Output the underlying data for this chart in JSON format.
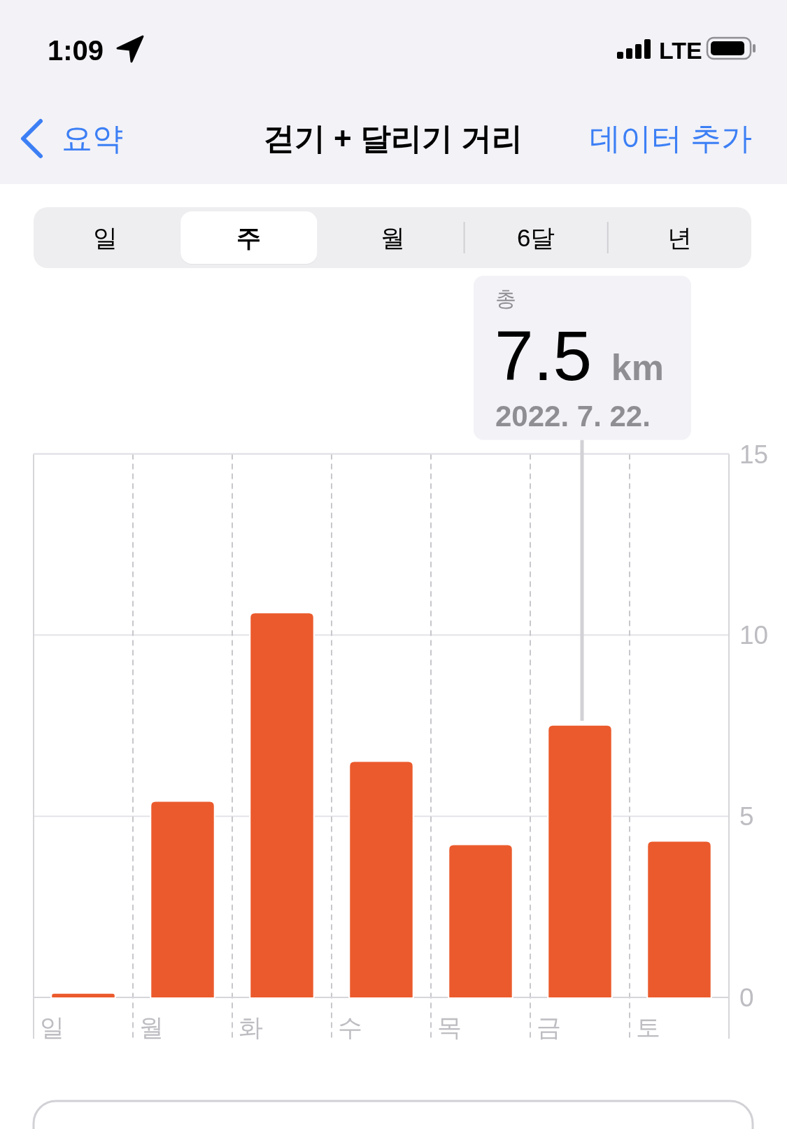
{
  "chart_data": {
    "type": "bar",
    "title": "걷기 + 달리기 거리",
    "categories": [
      "일",
      "월",
      "화",
      "수",
      "목",
      "금",
      "토"
    ],
    "values": [
      0.1,
      5.4,
      10.6,
      6.5,
      4.2,
      7.5,
      4.3
    ],
    "color": "#eb5a2c",
    "ylim": [
      0,
      15
    ],
    "yticks": [
      0,
      5,
      10,
      15
    ],
    "grid": true,
    "ref_lines": [
      {
        "axis": "x",
        "value": "금",
        "color": "#d1d1d6"
      }
    ],
    "annotations": [
      "1:09",
      "LTE",
      "요약",
      "데이터 추가",
      "일",
      "주",
      "월",
      "6달",
      "년",
      "총",
      "7.5 km",
      "2022. 7. 22."
    ]
  }
}
